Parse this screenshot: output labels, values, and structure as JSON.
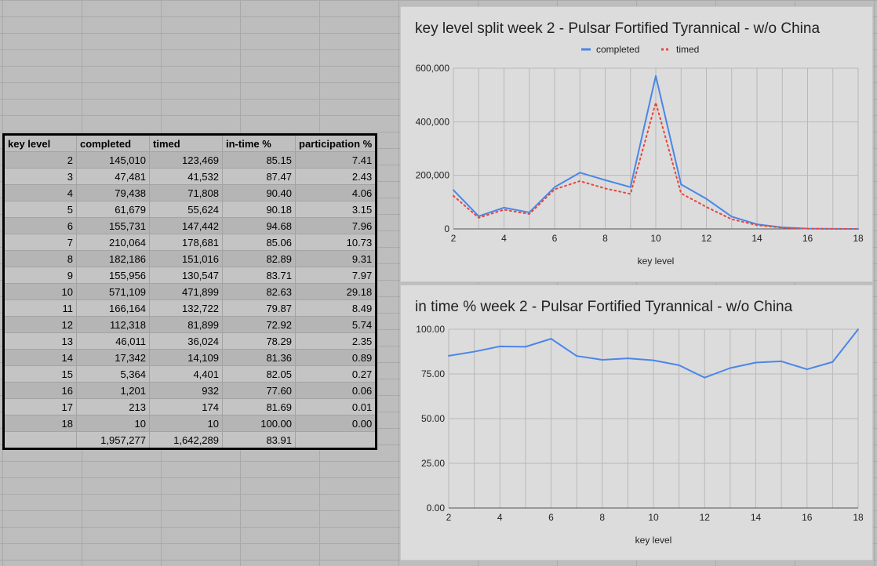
{
  "table": {
    "headers": [
      "key level",
      "completed",
      "timed",
      "in-time %",
      "participation %"
    ],
    "rows": [
      [
        "2",
        "145,010",
        "123,469",
        "85.15",
        "7.41"
      ],
      [
        "3",
        "47,481",
        "41,532",
        "87.47",
        "2.43"
      ],
      [
        "4",
        "79,438",
        "71,808",
        "90.40",
        "4.06"
      ],
      [
        "5",
        "61,679",
        "55,624",
        "90.18",
        "3.15"
      ],
      [
        "6",
        "155,731",
        "147,442",
        "94.68",
        "7.96"
      ],
      [
        "7",
        "210,064",
        "178,681",
        "85.06",
        "10.73"
      ],
      [
        "8",
        "182,186",
        "151,016",
        "82.89",
        "9.31"
      ],
      [
        "9",
        "155,956",
        "130,547",
        "83.71",
        "7.97"
      ],
      [
        "10",
        "571,109",
        "471,899",
        "82.63",
        "29.18"
      ],
      [
        "11",
        "166,164",
        "132,722",
        "79.87",
        "8.49"
      ],
      [
        "12",
        "112,318",
        "81,899",
        "72.92",
        "5.74"
      ],
      [
        "13",
        "46,011",
        "36,024",
        "78.29",
        "2.35"
      ],
      [
        "14",
        "17,342",
        "14,109",
        "81.36",
        "0.89"
      ],
      [
        "15",
        "5,364",
        "4,401",
        "82.05",
        "0.27"
      ],
      [
        "16",
        "1,201",
        "932",
        "77.60",
        "0.06"
      ],
      [
        "17",
        "213",
        "174",
        "81.69",
        "0.01"
      ],
      [
        "18",
        "10",
        "10",
        "100.00",
        "0.00"
      ]
    ],
    "totals": [
      "",
      "1,957,277",
      "1,642,289",
      "83.91",
      ""
    ]
  },
  "chart_data": [
    {
      "type": "line",
      "title": "key level split week 2 - Pulsar Fortified Tyrannical - w/o China",
      "xlabel": "key level",
      "ylabel": "",
      "x": [
        2,
        3,
        4,
        5,
        6,
        7,
        8,
        9,
        10,
        11,
        12,
        13,
        14,
        15,
        16,
        17,
        18
      ],
      "xlim": [
        2,
        18
      ],
      "xticks": [
        "2",
        "4",
        "6",
        "8",
        "10",
        "12",
        "14",
        "16",
        "18"
      ],
      "ylim": [
        0,
        600000
      ],
      "yticks": [
        "0",
        "200,000",
        "400,000",
        "600,000"
      ],
      "grid": true,
      "legend": "top",
      "series": [
        {
          "name": "completed",
          "color": "#4a86e8",
          "style": "solid",
          "values": [
            145010,
            47481,
            79438,
            61679,
            155731,
            210064,
            182186,
            155956,
            571109,
            166164,
            112318,
            46011,
            17342,
            5364,
            1201,
            213,
            10
          ]
        },
        {
          "name": "timed",
          "color": "#e8473a",
          "style": "dotted",
          "values": [
            123469,
            41532,
            71808,
            55624,
            147442,
            178681,
            151016,
            130547,
            471899,
            132722,
            81899,
            36024,
            14109,
            4401,
            932,
            174,
            10
          ]
        }
      ]
    },
    {
      "type": "line",
      "title": "in time % week 2 - Pulsar Fortified Tyrannical - w/o China",
      "xlabel": "key level",
      "ylabel": "",
      "x": [
        2,
        3,
        4,
        5,
        6,
        7,
        8,
        9,
        10,
        11,
        12,
        13,
        14,
        15,
        16,
        17,
        18
      ],
      "xlim": [
        2,
        18
      ],
      "xticks": [
        "2",
        "4",
        "6",
        "8",
        "10",
        "12",
        "14",
        "16",
        "18"
      ],
      "ylim": [
        0,
        100
      ],
      "yticks": [
        "0.00",
        "25.00",
        "50.00",
        "75.00",
        "100.00"
      ],
      "grid": true,
      "legend": "none",
      "series": [
        {
          "color": "#4a86e8",
          "style": "solid",
          "values": [
            85.15,
            87.47,
            90.4,
            90.18,
            94.68,
            85.06,
            82.89,
            83.71,
            82.63,
            79.87,
            72.92,
            78.29,
            81.36,
            82.05,
            77.6,
            81.69,
            100.0
          ]
        }
      ]
    }
  ]
}
